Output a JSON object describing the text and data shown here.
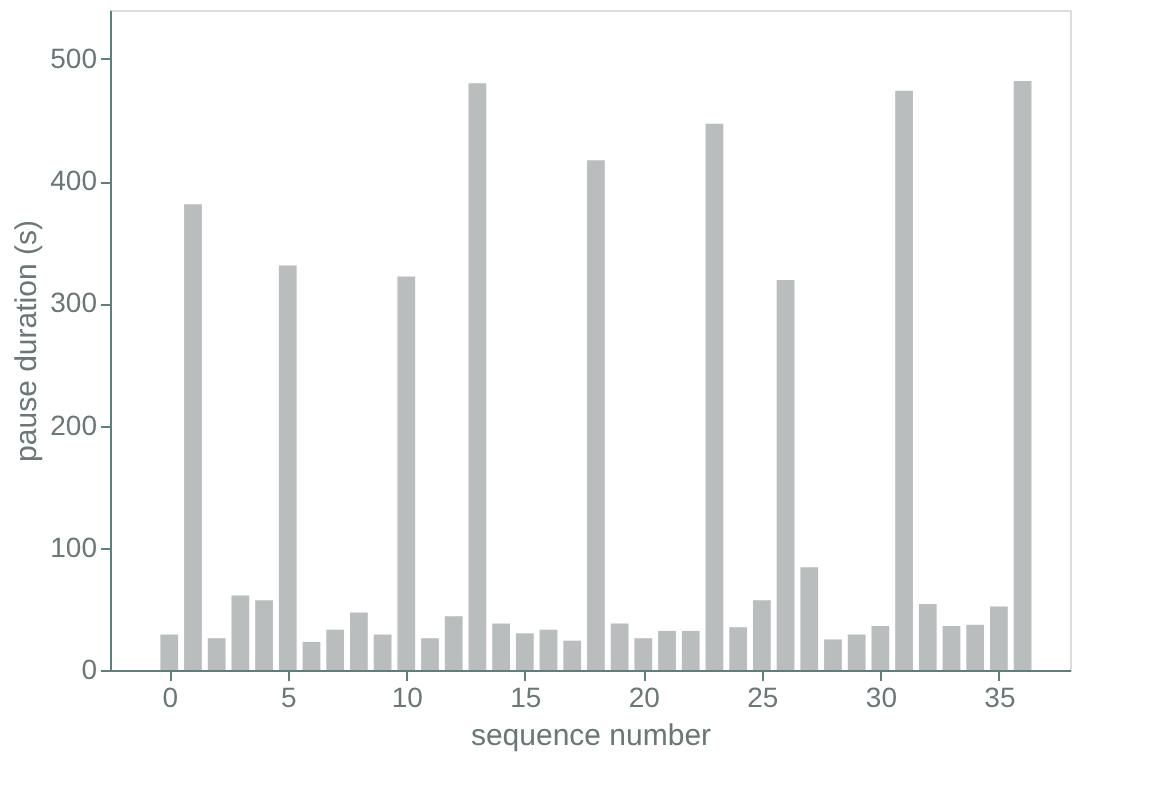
{
  "chart_data": {
    "type": "bar",
    "xlabel": "sequence number",
    "ylabel": "pause duration (s)",
    "x": [
      0,
      1,
      2,
      3,
      4,
      5,
      6,
      7,
      8,
      9,
      10,
      11,
      12,
      13,
      14,
      15,
      16,
      17,
      18,
      19,
      20,
      21,
      22,
      23,
      24,
      25,
      26,
      27,
      28,
      29,
      30,
      31,
      32,
      33,
      34,
      35,
      36
    ],
    "values": [
      29,
      381,
      26,
      61,
      57,
      331,
      23,
      33,
      47,
      29,
      322,
      26,
      44,
      480,
      38,
      30,
      33,
      24,
      417,
      38,
      26,
      32,
      32,
      447,
      35,
      57,
      319,
      84,
      25,
      29,
      36,
      474,
      54,
      36,
      37,
      52,
      482
    ],
    "color": "#b9bdbd",
    "xlim": [
      -2.5,
      38
    ],
    "xticks": [
      0,
      5,
      10,
      15,
      20,
      25,
      30,
      35
    ],
    "ylim": [
      0,
      540
    ],
    "yticks": [
      0,
      100,
      200,
      300,
      400,
      500
    ],
    "grid": false
  }
}
